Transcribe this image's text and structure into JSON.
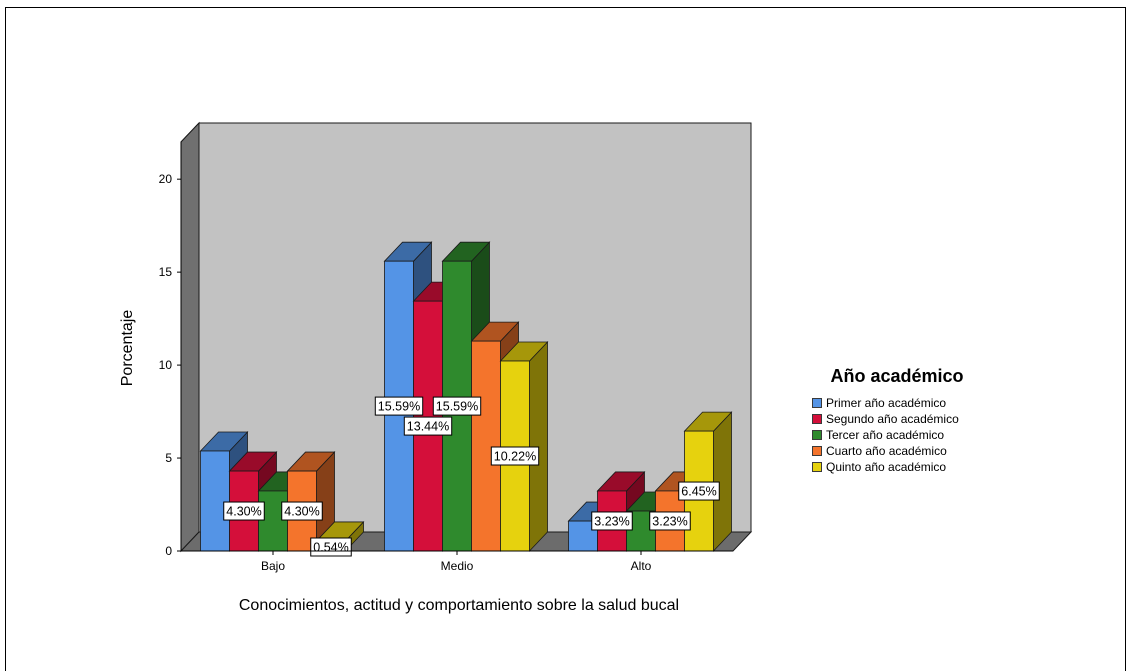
{
  "chart_data": {
    "type": "bar",
    "xlabel": "Conocimientos, actitud y comportamiento sobre la salud bucal",
    "ylabel": "Porcentaje",
    "categories": [
      "Bajo",
      "Medio",
      "Alto"
    ],
    "ylim": [
      0,
      22
    ],
    "yticks": [
      0,
      5,
      10,
      15,
      20
    ],
    "grid": false,
    "legend_position": "right",
    "legend_title": "Año académico",
    "series": [
      {
        "name": "Primer año académico",
        "color": "#5494e6",
        "values": [
          5.38,
          15.59,
          1.61
        ],
        "labels": [
          "",
          "15.59%",
          ""
        ]
      },
      {
        "name": "Segundo año académico",
        "color": "#d40f3a",
        "values": [
          4.3,
          13.44,
          3.23
        ],
        "labels": [
          "4.30%",
          "13.44%",
          "3.23%"
        ]
      },
      {
        "name": "Tercer año académico",
        "color": "#2f8a2d",
        "values": [
          3.23,
          15.59,
          2.15
        ],
        "labels": [
          "",
          "15.59%",
          ""
        ]
      },
      {
        "name": "Cuarto año académico",
        "color": "#f4742c",
        "values": [
          4.3,
          11.29,
          3.23
        ],
        "labels": [
          "4.30%",
          "",
          "3.23%"
        ]
      },
      {
        "name": "Quinto año académico",
        "color": "#e6d20e",
        "values": [
          0.54,
          10.22,
          6.45
        ],
        "labels": [
          "0.54%",
          "10.22%",
          "6.45%"
        ]
      }
    ]
  }
}
